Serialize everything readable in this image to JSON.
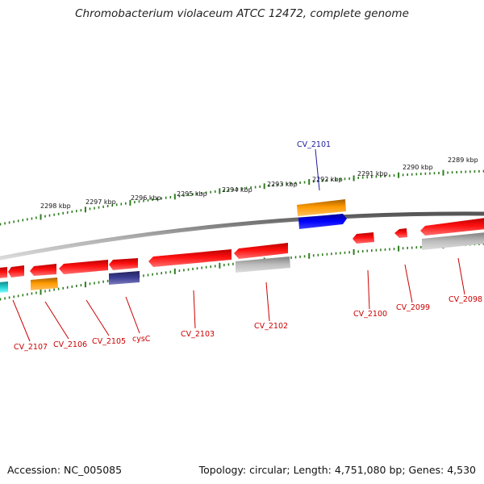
{
  "title": "Chromobacterium violaceum ATCC 12472, complete genome",
  "accession": "Accession: NC_005085",
  "topology": "Topology: circular; Length: 4,751,080 bp; Genes: 4,530",
  "colors": {
    "backbone": "#8a8a8a",
    "tick": "#2e7d1e",
    "gene_red": "#ee0000",
    "gene_orange": "#ff9900",
    "gene_blue": "#0000ee",
    "gene_grey": "#b0b0b0",
    "gene_navy": "#3b3b8f",
    "gene_cyan": "#22cccc",
    "label_red": "#cc0000",
    "label_blue": "#1a1aa0"
  },
  "kbp_labels": [
    "2298 kbp",
    "2297 kbp",
    "2296 kbp",
    "2295 kbp",
    "2294 kbp",
    "2293 kbp",
    "2292 kbp",
    "2291 kbp",
    "2290 kbp",
    "2289 kbp"
  ],
  "gene_labels": [
    "CV_2101",
    "CV_2107",
    "CV_2106",
    "CV_2105",
    "cysC",
    "CV_2103",
    "CV_2102",
    "CV_2100",
    "CV_2099",
    "CV_2098"
  ]
}
